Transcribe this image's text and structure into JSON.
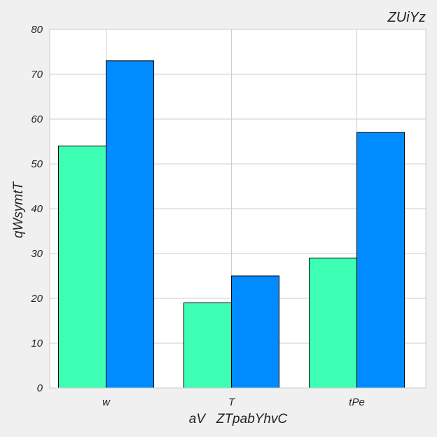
{
  "chart_data": {
    "type": "bar",
    "title": "ZUiYz",
    "xlabel": "aV   ZTpabYhvC",
    "ylabel": "qWsymtT",
    "categories": [
      "w",
      "T",
      "tPe"
    ],
    "series": [
      {
        "values": [
          54,
          19,
          29
        ],
        "color": "#3dffb4"
      },
      {
        "values": [
          73,
          25,
          57
        ],
        "color": "#008cff"
      }
    ],
    "ylim": [
      0,
      80
    ],
    "yticks": [
      0,
      10,
      20,
      30,
      40,
      50,
      60,
      70,
      80
    ],
    "grid": true,
    "legend": "none"
  }
}
